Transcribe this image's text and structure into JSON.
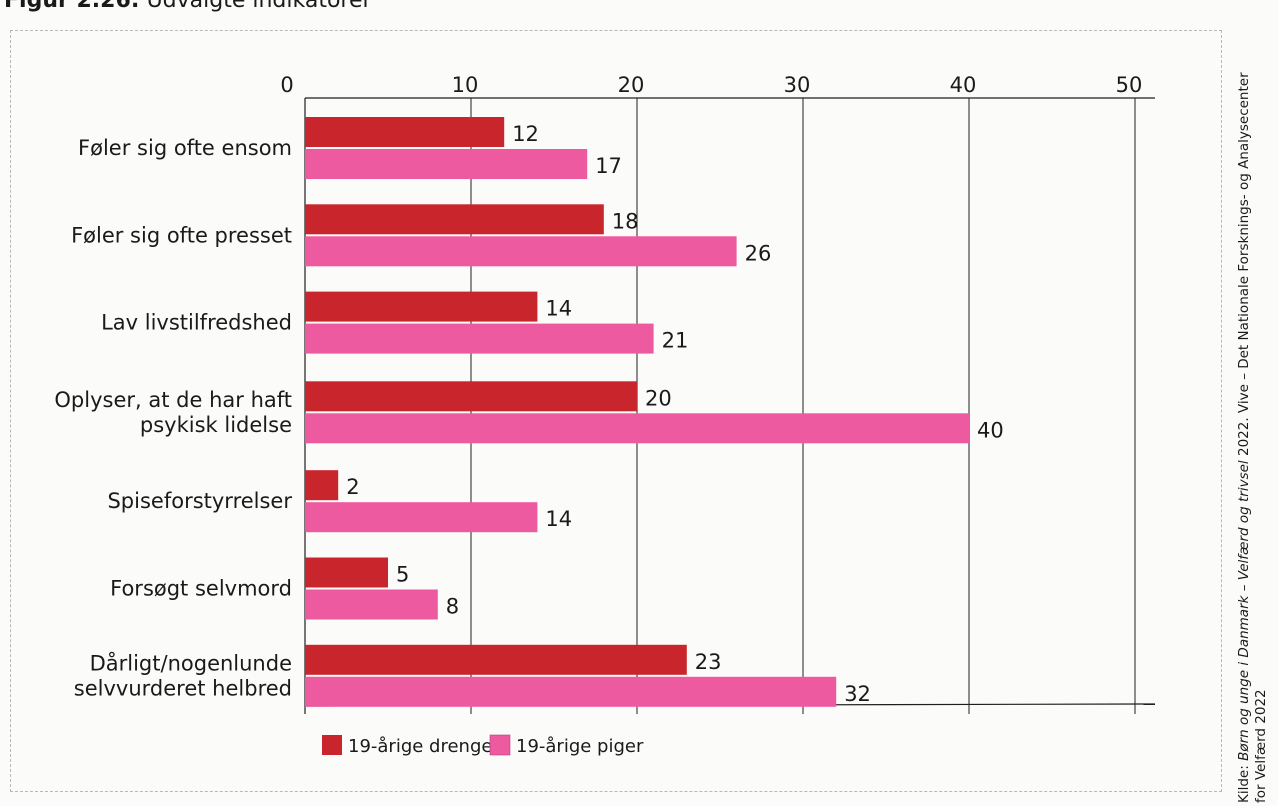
{
  "figure": {
    "label": "Figur 2.26:",
    "title": "Udvalgte indikatorer"
  },
  "source": {
    "line1_prefix": "Kilde: ",
    "line1_title": "Børn og unge i Danmark – Velfærd og trivsel",
    "line1_suffix": " 2022. Vive – Det Nationale Forsknings- og Analysecenter",
    "line2": "for Velfærd 2022"
  },
  "chart_data": {
    "type": "bar",
    "orientation": "horizontal",
    "categories": [
      [
        "Føler sig ofte ensom"
      ],
      [
        "Føler sig ofte presset"
      ],
      [
        "Lav livstilfredshed"
      ],
      [
        "Oplyser, at de har haft",
        "psykisk lidelse"
      ],
      [
        "Spiseforstyrrelser"
      ],
      [
        "Forsøgt selvmord"
      ],
      [
        "Dårligt/nogenlunde",
        "selvvurderet helbred"
      ]
    ],
    "series": [
      {
        "name": "19-årige drenge",
        "color": "#c8262c",
        "values": [
          12,
          18,
          14,
          20,
          2,
          5,
          23
        ]
      },
      {
        "name": "19-årige piger",
        "color": "#ee5aa0",
        "values": [
          17,
          26,
          21,
          40,
          14,
          8,
          32
        ]
      }
    ],
    "xlim": [
      0,
      50
    ],
    "xticks": [
      0,
      10,
      20,
      30,
      40,
      50
    ],
    "grid": true,
    "legend": "bottom-left"
  }
}
